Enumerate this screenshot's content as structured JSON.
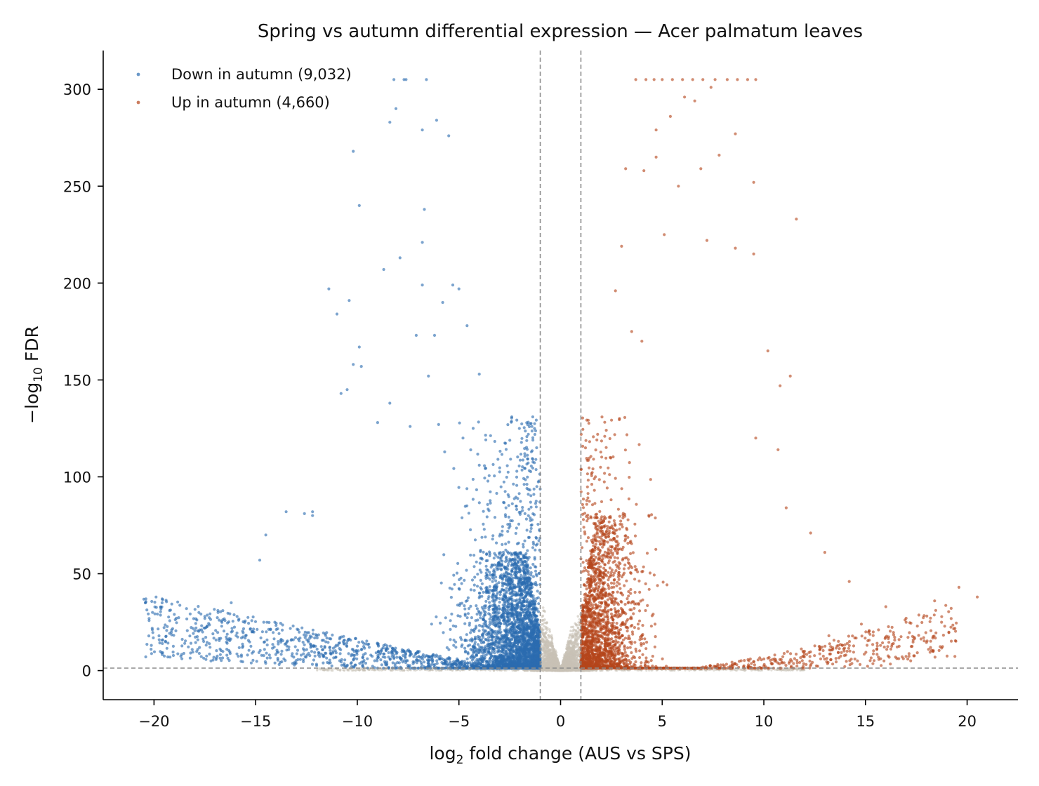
{
  "chart_data": {
    "type": "scatter",
    "title": "Spring vs autumn differential expression — Acer palmatum leaves",
    "xlabel": {
      "prefix": "log",
      "sub": "2",
      "suffix": " fold change (AUS vs SPS)"
    },
    "ylabel": {
      "prefix": "−log",
      "sub": "10",
      "suffix": " FDR"
    },
    "xlim": [
      -22.5,
      22.5
    ],
    "ylim": [
      -15,
      320
    ],
    "xticks": [
      -20,
      -15,
      -10,
      -5,
      0,
      5,
      10,
      15,
      20
    ],
    "xtick_labels": [
      "−20",
      "−15",
      "−10",
      "−5",
      "0",
      "5",
      "10",
      "15",
      "20"
    ],
    "yticks": [
      0,
      50,
      100,
      150,
      200,
      250,
      300
    ],
    "ytick_labels": [
      "0",
      "50",
      "100",
      "150",
      "200",
      "250",
      "300"
    ],
    "thresholds": {
      "log2fc": [
        -1,
        1
      ],
      "neg_log10_fdr": 1.3
    },
    "legend_position": "top-left",
    "grid": false,
    "series": [
      {
        "name": "Down in autumn (9,032)",
        "color": "#2b6cb0",
        "count": 9032,
        "points": [
          [
            -20.4,
            37
          ],
          [
            -19.9,
            38
          ],
          [
            -19.6,
            37
          ],
          [
            -19.0,
            29
          ],
          [
            -18.9,
            27
          ],
          [
            -18.4,
            32
          ],
          [
            -17.5,
            28
          ],
          [
            -16.2,
            35
          ],
          [
            -14.8,
            57
          ],
          [
            -14.5,
            70
          ],
          [
            -13.5,
            82
          ],
          [
            -12.6,
            81
          ],
          [
            -12.2,
            80
          ],
          [
            -11.4,
            197
          ],
          [
            -11.0,
            184
          ],
          [
            -10.4,
            191
          ],
          [
            -10.2,
            158
          ],
          [
            -10.2,
            268
          ],
          [
            -9.9,
            240
          ],
          [
            -9.9,
            167
          ],
          [
            -9.8,
            157
          ],
          [
            -10.8,
            143
          ],
          [
            -10.5,
            145
          ],
          [
            -8.7,
            207
          ],
          [
            -8.2,
            305
          ],
          [
            -8.1,
            290
          ],
          [
            -7.9,
            213
          ],
          [
            -7.7,
            305
          ],
          [
            -7.6,
            305
          ],
          [
            -8.4,
            283
          ],
          [
            -7.1,
            173
          ],
          [
            -6.8,
            279
          ],
          [
            -6.7,
            238
          ],
          [
            -6.8,
            221
          ],
          [
            -6.6,
            305
          ],
          [
            -6.1,
            284
          ],
          [
            -5.8,
            190
          ],
          [
            -5.5,
            276
          ],
          [
            -5.3,
            199
          ],
          [
            -4.6,
            178
          ],
          [
            -4.0,
            153
          ],
          [
            -6.2,
            173
          ],
          [
            -6.8,
            199
          ],
          [
            -6.0,
            127
          ],
          [
            -5.0,
            197
          ],
          [
            -9.0,
            128
          ],
          [
            -8.4,
            138
          ],
          [
            -7.4,
            126
          ],
          [
            -6.5,
            152
          ],
          [
            -4.3,
            125
          ],
          [
            -4.0,
            106
          ],
          [
            -4.8,
            120
          ],
          [
            -12.2,
            82
          ]
        ]
      },
      {
        "name": "Up in autumn (4,660)",
        "color": "#b5461b",
        "count": 4660,
        "points": [
          [
            3.7,
            305
          ],
          [
            4.2,
            305
          ],
          [
            4.6,
            305
          ],
          [
            5.0,
            305
          ],
          [
            5.5,
            305
          ],
          [
            6.0,
            305
          ],
          [
            6.5,
            305
          ],
          [
            7.0,
            305
          ],
          [
            7.6,
            305
          ],
          [
            8.2,
            305
          ],
          [
            8.7,
            305
          ],
          [
            9.2,
            305
          ],
          [
            9.6,
            305
          ],
          [
            7.4,
            301
          ],
          [
            9.5,
            252
          ],
          [
            8.6,
            277
          ],
          [
            6.1,
            296
          ],
          [
            6.6,
            294
          ],
          [
            5.4,
            286
          ],
          [
            4.7,
            279
          ],
          [
            3.2,
            259
          ],
          [
            4.1,
            258
          ],
          [
            4.7,
            265
          ],
          [
            5.8,
            250
          ],
          [
            6.9,
            259
          ],
          [
            7.8,
            266
          ],
          [
            11.6,
            233
          ],
          [
            7.2,
            222
          ],
          [
            8.6,
            218
          ],
          [
            9.5,
            215
          ],
          [
            10.2,
            165
          ],
          [
            10.8,
            147
          ],
          [
            11.3,
            152
          ],
          [
            5.1,
            225
          ],
          [
            3.0,
            219
          ],
          [
            2.7,
            196
          ],
          [
            3.5,
            175
          ],
          [
            4.0,
            170
          ],
          [
            9.6,
            120
          ],
          [
            10.7,
            114
          ],
          [
            11.1,
            84
          ],
          [
            12.3,
            71
          ],
          [
            13.0,
            61
          ],
          [
            14.2,
            46
          ],
          [
            16.0,
            33
          ],
          [
            18.4,
            36
          ],
          [
            19.6,
            43
          ],
          [
            20.5,
            38
          ],
          [
            17.0,
            27
          ],
          [
            14.8,
            24
          ],
          [
            13.2,
            18
          ],
          [
            12.0,
            10
          ],
          [
            11.0,
            4
          ],
          [
            10.0,
            6
          ],
          [
            9.0,
            2
          ],
          [
            8.0,
            3
          ],
          [
            7.0,
            1.8
          ]
        ]
      }
    ]
  }
}
